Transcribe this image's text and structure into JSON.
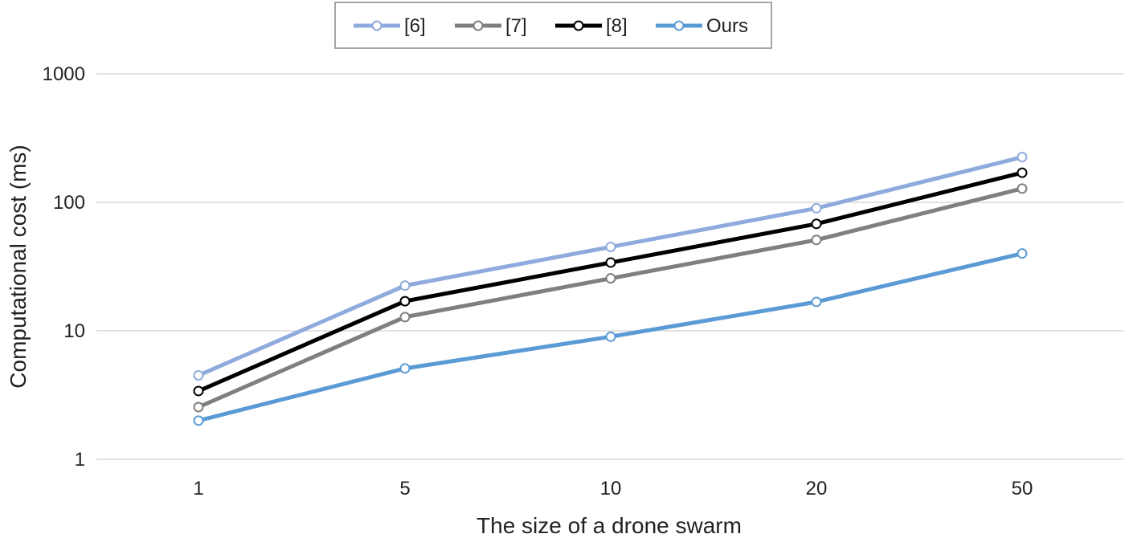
{
  "chart_data": {
    "type": "line",
    "title": "",
    "xlabel": "The size of a drone swarm",
    "ylabel": "Computational cost (ms)",
    "yscale": "log",
    "ylim": [
      1,
      1000
    ],
    "categories": [
      "1",
      "5",
      "10",
      "20",
      "50"
    ],
    "yticks": [
      "1",
      "10",
      "100",
      "1000"
    ],
    "grid": true,
    "legend_position": "top",
    "series": [
      {
        "name": "[6]",
        "color": "#8faadc",
        "marker_fill": "#ffffff",
        "values": [
          4.5,
          22.5,
          45,
          90,
          225
        ]
      },
      {
        "name": "[7]",
        "color": "#7f7f7f",
        "marker_fill": "#ffffff",
        "values": [
          2.55,
          12.8,
          25.6,
          51,
          128
        ]
      },
      {
        "name": "[8]",
        "color": "#000000",
        "marker_fill": "#ffffff",
        "values": [
          3.4,
          17,
          34,
          68,
          170
        ]
      },
      {
        "name": "Ours",
        "color": "#5b9bd5",
        "marker_fill": "#ffffff",
        "values": [
          2.0,
          5.1,
          9.0,
          16.8,
          40
        ]
      }
    ]
  }
}
